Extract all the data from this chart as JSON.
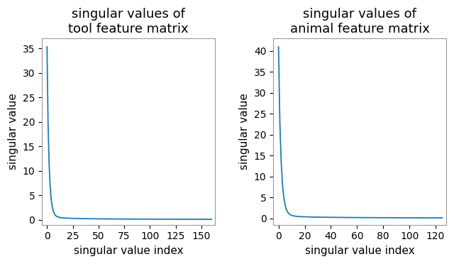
{
  "title1": "singular values of\ntool feature matrix",
  "title2": "singular values of\nanimal feature matrix",
  "xlabel": "singular value index",
  "ylabel": "singular value",
  "line_color": "#1f7bb5",
  "tool_n": 161,
  "tool_max": 35.3,
  "tool_xlim": [
    -5,
    163
  ],
  "tool_ylim": [
    -1.0,
    37
  ],
  "tool_xticks": [
    0,
    25,
    50,
    75,
    100,
    125,
    150
  ],
  "tool_yticks": [
    0,
    5,
    10,
    15,
    20,
    25,
    30,
    35
  ],
  "animal_n": 126,
  "animal_max": 41.0,
  "animal_xlim": [
    -4,
    128
  ],
  "animal_ylim": [
    -1.5,
    43
  ],
  "animal_xticks": [
    0,
    20,
    40,
    60,
    80,
    100,
    120
  ],
  "animal_yticks": [
    0,
    5,
    10,
    15,
    20,
    25,
    30,
    35,
    40
  ],
  "title_fontsize": 13,
  "label_fontsize": 11,
  "tick_fontsize": 10,
  "background_color": "#ffffff",
  "line_width": 1.3,
  "tool_alpha": 0.55,
  "tool_beta": 2.8,
  "animal_alpha": 0.55,
  "animal_beta": 2.8
}
